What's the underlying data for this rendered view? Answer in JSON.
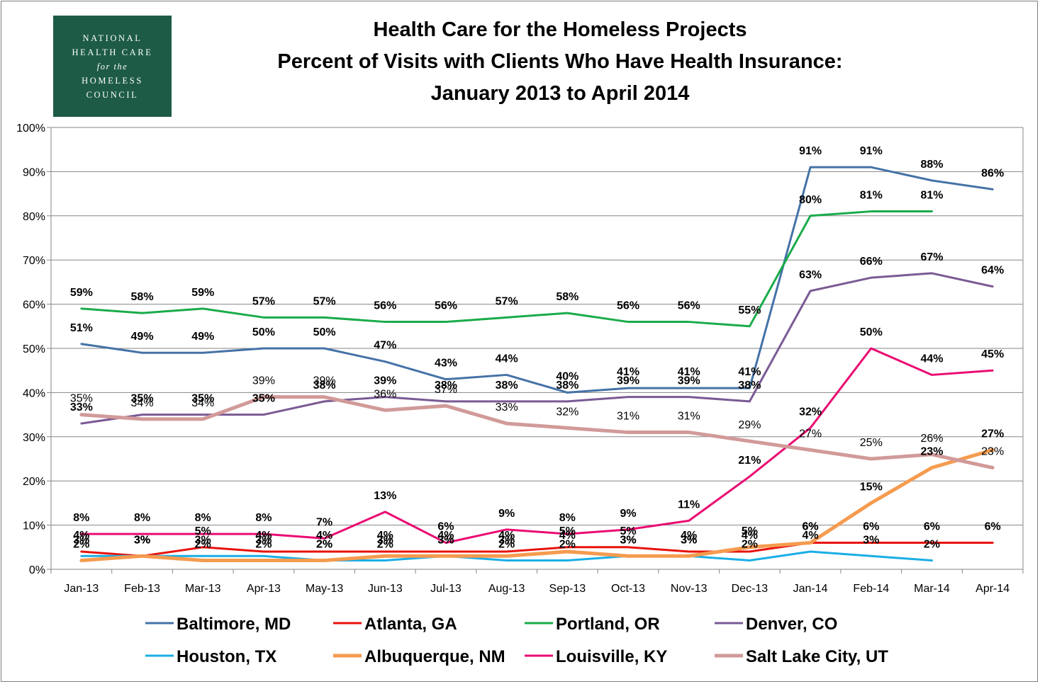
{
  "logo": {
    "lines": [
      "NATIONAL",
      "HEALTH CARE",
      "for the",
      "HOMELESS",
      "COUNCIL"
    ]
  },
  "title": {
    "line1": "Health Care for the Homeless Projects",
    "line2": "Percent of Visits with Clients Who Have Health Insurance:",
    "line3": "January 2013 to April 2014"
  },
  "chart_data": {
    "type": "line",
    "categories": [
      "Jan-13",
      "Feb-13",
      "Mar-13",
      "Apr-13",
      "May-13",
      "Jun-13",
      "Jul-13",
      "Aug-13",
      "Sep-13",
      "Oct-13",
      "Nov-13",
      "Dec-13",
      "Jan-14",
      "Feb-14",
      "Mar-14",
      "Apr-14"
    ],
    "y_ticks": [
      "0%",
      "10%",
      "20%",
      "30%",
      "40%",
      "50%",
      "60%",
      "70%",
      "80%",
      "90%",
      "100%"
    ],
    "ylim": [
      0,
      100
    ],
    "grid": true,
    "legend_position": "bottom",
    "series": [
      {
        "name": "Baltimore, MD",
        "color": "#4572a7",
        "values": [
          51,
          49,
          49,
          50,
          50,
          47,
          43,
          44,
          40,
          41,
          41,
          41,
          91,
          91,
          88,
          86
        ],
        "labels": [
          "51%",
          "49%",
          "49%",
          "50%",
          "50%",
          "47%",
          "43%",
          "44%",
          "40%",
          "41%",
          "41%",
          "41%",
          "91%",
          "91%",
          "88%",
          "86%"
        ]
      },
      {
        "name": "Atlanta, GA",
        "color": "#e8120c",
        "values": [
          4,
          3,
          5,
          4,
          4,
          4,
          4,
          4,
          5,
          5,
          4,
          4,
          6,
          6,
          6,
          6
        ],
        "labels": [
          "4%",
          "3%",
          "5%",
          "4%",
          "4%",
          "4%",
          "4%",
          "4%",
          "5%",
          "5%",
          "4%",
          "4%",
          "6%",
          "6%",
          "6%",
          "6%"
        ]
      },
      {
        "name": "Portland, OR",
        "color": "#1aab4a",
        "values": [
          59,
          58,
          59,
          57,
          57,
          56,
          56,
          57,
          58,
          56,
          56,
          55,
          80,
          81,
          81,
          null
        ],
        "labels": [
          "59%",
          "58%",
          "59%",
          "57%",
          "57%",
          "56%",
          "56%",
          "57%",
          "58%",
          "56%",
          "56%",
          "55%",
          "80%",
          "81%",
          "81%",
          null
        ]
      },
      {
        "name": "Denver, CO",
        "color": "#7a5a94",
        "values": [
          33,
          35,
          35,
          35,
          38,
          39,
          38,
          38,
          38,
          39,
          39,
          38,
          63,
          66,
          67,
          64
        ],
        "labels": [
          "33%",
          "35%",
          "35%",
          "35%",
          "38%",
          "39%",
          "38%",
          "38%",
          "38%",
          "39%",
          "39%",
          "38%",
          "63%",
          "66%",
          "67%",
          "64%"
        ]
      },
      {
        "name": "Houston, TX",
        "color": "#1aaee5",
        "values": [
          3,
          3,
          3,
          3,
          2,
          2,
          3,
          2,
          2,
          3,
          3,
          2,
          4,
          3,
          2,
          null
        ],
        "labels": [
          "3%",
          "3%",
          "3%",
          "3%",
          "2%",
          "2%",
          "3%",
          "2%",
          "2%",
          "3%",
          "3%",
          "2%",
          "4%",
          "3%",
          "2%",
          null
        ]
      },
      {
        "name": "Albuquerque, NM",
        "color": "#f59b4f",
        "values": [
          2,
          3,
          2,
          2,
          2,
          3,
          3,
          3,
          4,
          3,
          3,
          5,
          6,
          15,
          23,
          27
        ],
        "labels": [
          "2%",
          "3%",
          "2%",
          "2%",
          "2%",
          "3%",
          "3%",
          "3%",
          "4%",
          "3%",
          "3%",
          "5%",
          "6%",
          "15%",
          "23%",
          "27%"
        ]
      },
      {
        "name": "Louisville, KY",
        "color": "#ea0b72",
        "values": [
          8,
          8,
          8,
          8,
          7,
          13,
          6,
          9,
          8,
          9,
          11,
          21,
          32,
          50,
          44,
          45
        ],
        "labels": [
          "8%",
          "8%",
          "8%",
          "8%",
          "7%",
          "13%",
          "6%",
          "9%",
          "8%",
          "9%",
          "11%",
          "21%",
          "32%",
          "50%",
          "44%",
          "45%"
        ]
      },
      {
        "name": "Salt Lake City, UT",
        "color": "#d19a99",
        "values": [
          35,
          34,
          34,
          39,
          39,
          36,
          37,
          33,
          32,
          31,
          31,
          29,
          27,
          25,
          26,
          23
        ],
        "labels": [
          "35%",
          "34%",
          "34%",
          "39%",
          "39%",
          "36%",
          "37%",
          "33%",
          "32%",
          "31%",
          "31%",
          "29%",
          "27%",
          "25%",
          "26%",
          "23%"
        ]
      }
    ]
  }
}
